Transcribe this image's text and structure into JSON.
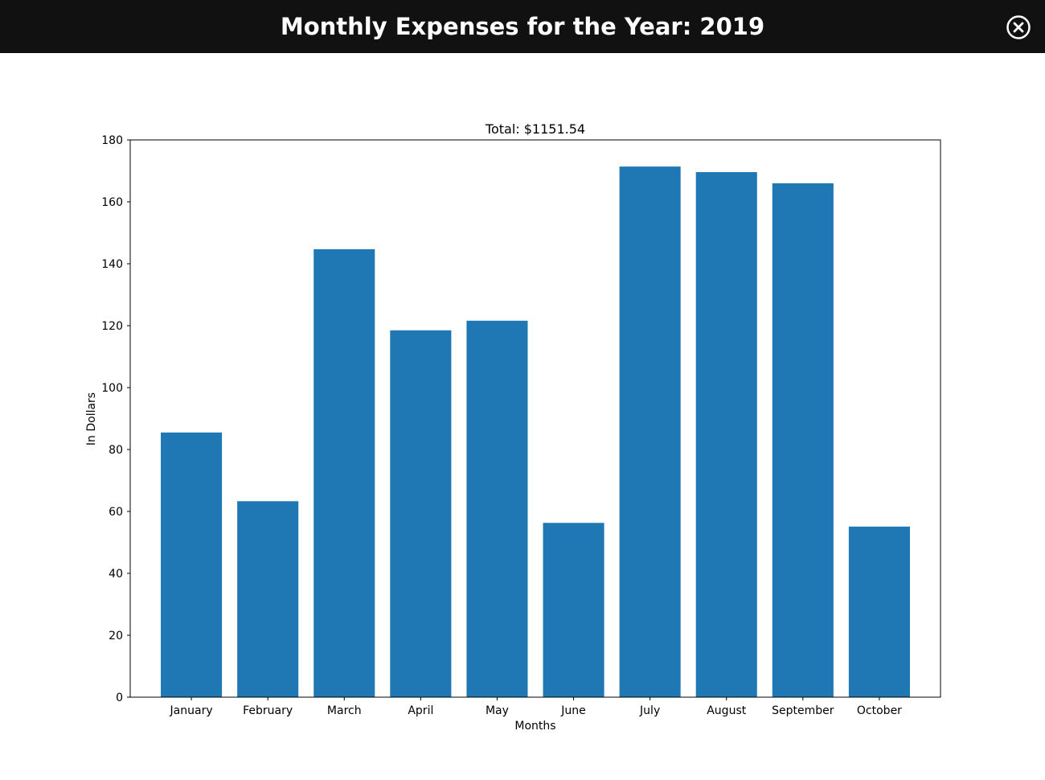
{
  "window": {
    "title": "Monthly Expenses for the Year: 2019",
    "close_icon": "close-circle-icon"
  },
  "chart_data": {
    "type": "bar",
    "title": "Total: $1151.54",
    "xlabel": "Months",
    "ylabel": "In Dollars",
    "categories": [
      "January",
      "February",
      "March",
      "April",
      "May",
      "June",
      "July",
      "August",
      "September",
      "October"
    ],
    "values": [
      85.5,
      63.3,
      144.7,
      118.5,
      121.6,
      56.3,
      171.4,
      169.6,
      166.0,
      55.1
    ],
    "ylim": [
      0,
      180
    ],
    "yticks": [
      0,
      20,
      40,
      60,
      80,
      100,
      120,
      140,
      160,
      180
    ],
    "bar_color": "#1f77b4",
    "grid": false,
    "legend": "none"
  },
  "colors": {
    "titlebar_bg": "#111111",
    "titlebar_text": "#ffffff",
    "bar": "#1f77b4"
  }
}
